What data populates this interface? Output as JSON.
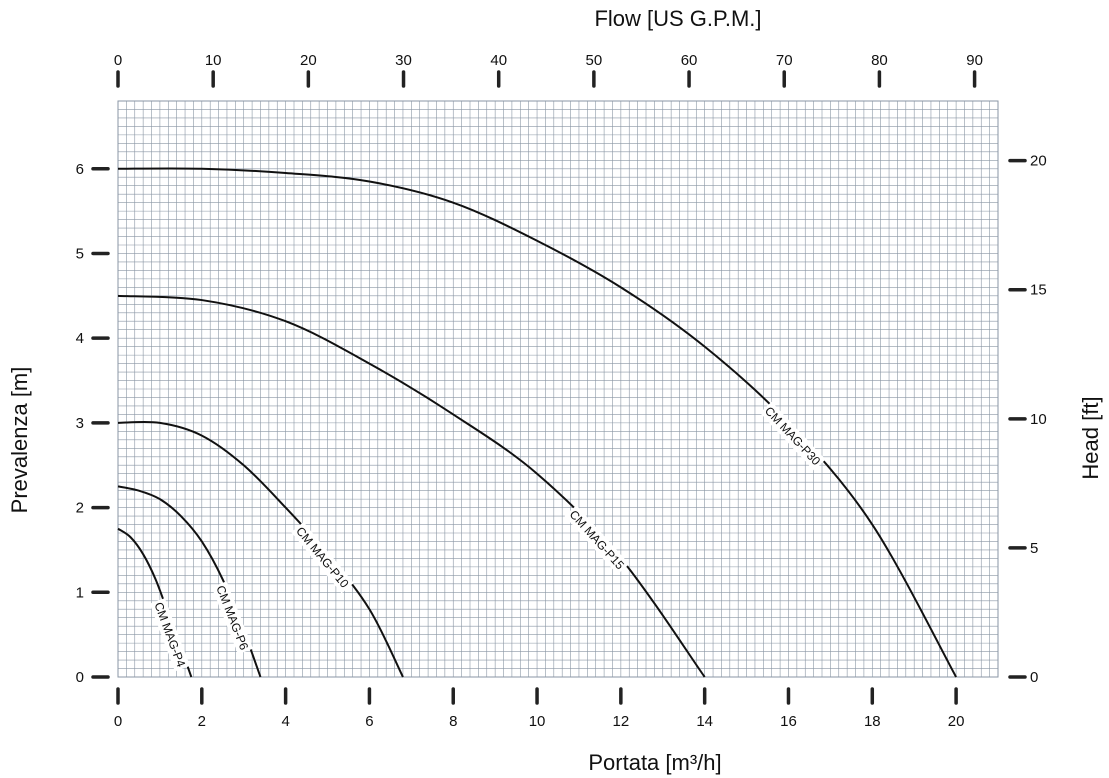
{
  "chart_data": {
    "type": "line",
    "x_bottom_label": "Portata  [m³/h]",
    "x_top_label": "Flow  [US G.P.M.]",
    "y_left_label": "Prevalenza [m]",
    "y_right_label": "Head [ft]",
    "x_bottom_range": [
      0,
      21
    ],
    "y_left_range": [
      0,
      6.8
    ],
    "x_bottom_ticks": [
      0,
      2,
      4,
      6,
      8,
      10,
      12,
      14,
      16,
      18,
      20
    ],
    "x_top_ticks": [
      0,
      10,
      20,
      30,
      40,
      50,
      60,
      70,
      80,
      90
    ],
    "y_left_ticks": [
      0,
      1,
      2,
      3,
      4,
      5,
      6
    ],
    "y_right_ticks": [
      0,
      5,
      10,
      15,
      20
    ],
    "grid": true,
    "series": [
      {
        "name": "CM MAG-P4",
        "x": [
          0,
          0.3,
          0.6,
          0.9,
          1.2,
          1.5,
          1.75
        ],
        "y": [
          1.75,
          1.65,
          1.45,
          1.15,
          0.75,
          0.35,
          0
        ]
      },
      {
        "name": "CM MAG-P6",
        "x": [
          0,
          0.5,
          1.0,
          1.5,
          2.0,
          2.5,
          3.0,
          3.4
        ],
        "y": [
          2.25,
          2.2,
          2.1,
          1.9,
          1.6,
          1.15,
          0.55,
          0
        ]
      },
      {
        "name": "CM MAG-P10",
        "x": [
          0,
          1,
          2,
          3,
          4,
          5,
          6,
          6.8
        ],
        "y": [
          3.0,
          3.0,
          2.85,
          2.5,
          2.0,
          1.45,
          0.8,
          0
        ]
      },
      {
        "name": "CM MAG-P15",
        "x": [
          0,
          2,
          4,
          6,
          8,
          10,
          12,
          14
        ],
        "y": [
          4.5,
          4.45,
          4.2,
          3.7,
          3.1,
          2.4,
          1.4,
          0
        ]
      },
      {
        "name": "CM MAG-P30",
        "x": [
          0,
          2,
          4,
          6,
          8,
          10,
          12,
          14,
          16,
          18,
          20
        ],
        "y": [
          6.0,
          6.0,
          5.95,
          5.85,
          5.6,
          5.15,
          4.6,
          3.9,
          3.0,
          1.8,
          0
        ]
      }
    ]
  }
}
